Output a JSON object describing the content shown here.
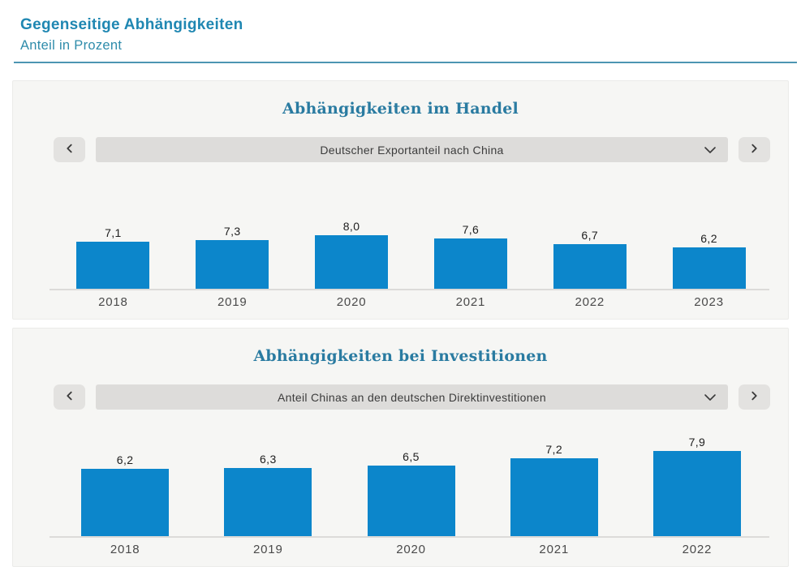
{
  "page": {
    "title": "Gegenseitige Abhängigkeiten",
    "subtitle": "Anteil in Prozent"
  },
  "colors": {
    "bar_blue": "#0c86cb",
    "header_title_blue": "#1f87b2",
    "header_subtitle_blue": "#2f8cab",
    "header_rule_blue": "#4d95b2",
    "panel_title_teal": "#2a7ba1",
    "panel_background": "#f6f6f4",
    "control_gray": "#dddcda"
  },
  "panels": [
    {
      "title": "Abhängigkeiten im Handel",
      "dropdown": {
        "selected": "Deutscher Exportanteil nach China"
      },
      "icons": {
        "prev": "chevron-left",
        "next": "chevron-right",
        "expand": "chevron-down"
      }
    },
    {
      "title": "Abhängigkeiten bei Investitionen",
      "dropdown": {
        "selected": "Anteil Chinas an den deutschen Direktinvestitionen"
      },
      "icons": {
        "prev": "chevron-left",
        "next": "chevron-right",
        "expand": "chevron-down"
      }
    }
  ],
  "chart_data": [
    {
      "type": "bar",
      "title": "Abhängigkeiten im Handel",
      "series_label": "Deutscher Exportanteil nach China",
      "unit": "Prozent",
      "categories": [
        "2018",
        "2019",
        "2020",
        "2021",
        "2022",
        "2023"
      ],
      "values": [
        7.1,
        7.3,
        8.0,
        7.6,
        6.7,
        6.2
      ],
      "labels": [
        "7,1",
        "7,3",
        "8,0",
        "7,6",
        "6,7",
        "6,2"
      ],
      "bar_color": "#0c86cb",
      "ylim": [
        0,
        14.6
      ],
      "grid": false,
      "legend": "none"
    },
    {
      "type": "bar",
      "title": "Abhängigkeiten bei Investitionen",
      "series_label": "Anteil Chinas an den deutschen Direktinvestitionen",
      "unit": "Prozent",
      "categories": [
        "2018",
        "2019",
        "2020",
        "2021",
        "2022"
      ],
      "values": [
        6.2,
        6.3,
        6.5,
        7.2,
        7.9
      ],
      "labels": [
        "6,2",
        "6,3",
        "6,5",
        "7,2",
        "7,9"
      ],
      "bar_color": "#0c86cb",
      "ylim": [
        0,
        9.0
      ],
      "grid": false,
      "legend": "none"
    }
  ]
}
